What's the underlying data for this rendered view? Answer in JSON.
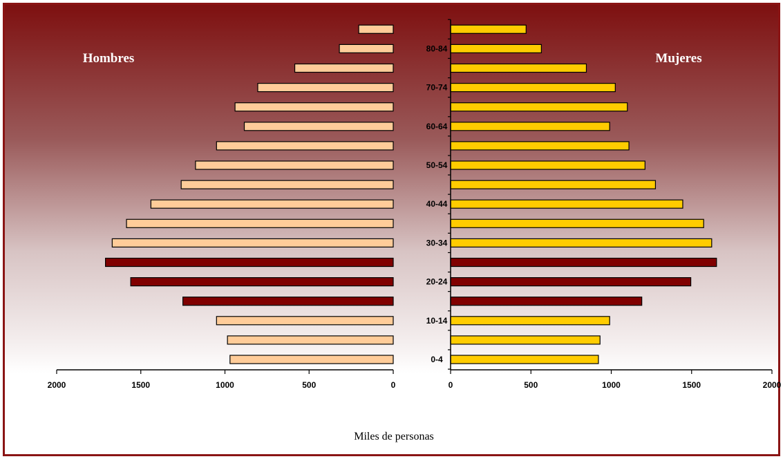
{
  "chart_data": {
    "type": "bar",
    "orientation": "horizontal-pyramid",
    "age_groups": [
      "0-4",
      "5-9",
      "10-14",
      "15-19",
      "20-24",
      "25-29",
      "30-34",
      "35-39",
      "40-44",
      "45-49",
      "50-54",
      "55-59",
      "60-64",
      "65-69",
      "70-74",
      "75-79",
      "80-84",
      "85+"
    ],
    "age_tick_labels": [
      "0-4",
      "",
      "10-14",
      "",
      "20-24",
      "",
      "30-34",
      "",
      "40-44",
      "",
      "50-54",
      "",
      "60-64",
      "",
      "70-74",
      "",
      "80-84",
      ""
    ],
    "series": [
      {
        "name": "Hombres",
        "values": [
          970,
          985,
          1050,
          1250,
          1560,
          1710,
          1670,
          1585,
          1440,
          1260,
          1175,
          1050,
          885,
          940,
          805,
          585,
          320,
          205
        ]
      },
      {
        "name": "Mujeres",
        "values": [
          920,
          930,
          990,
          1190,
          1495,
          1655,
          1625,
          1575,
          1445,
          1275,
          1210,
          1110,
          990,
          1100,
          1025,
          845,
          565,
          470
        ]
      }
    ],
    "highlight_groups": [
      "15-19",
      "20-24",
      "25-29"
    ],
    "colors": {
      "hombres": "#ffcc99",
      "mujeres": "#ffcc00",
      "highlight": "#800000",
      "frame": "#8a1414"
    },
    "x_ticks": [
      0,
      500,
      1000,
      1500,
      2000
    ],
    "xlim": [
      0,
      2000
    ],
    "xlabel": "Miles de personas",
    "left_label": "Hombres",
    "right_label": "Mujeres"
  }
}
